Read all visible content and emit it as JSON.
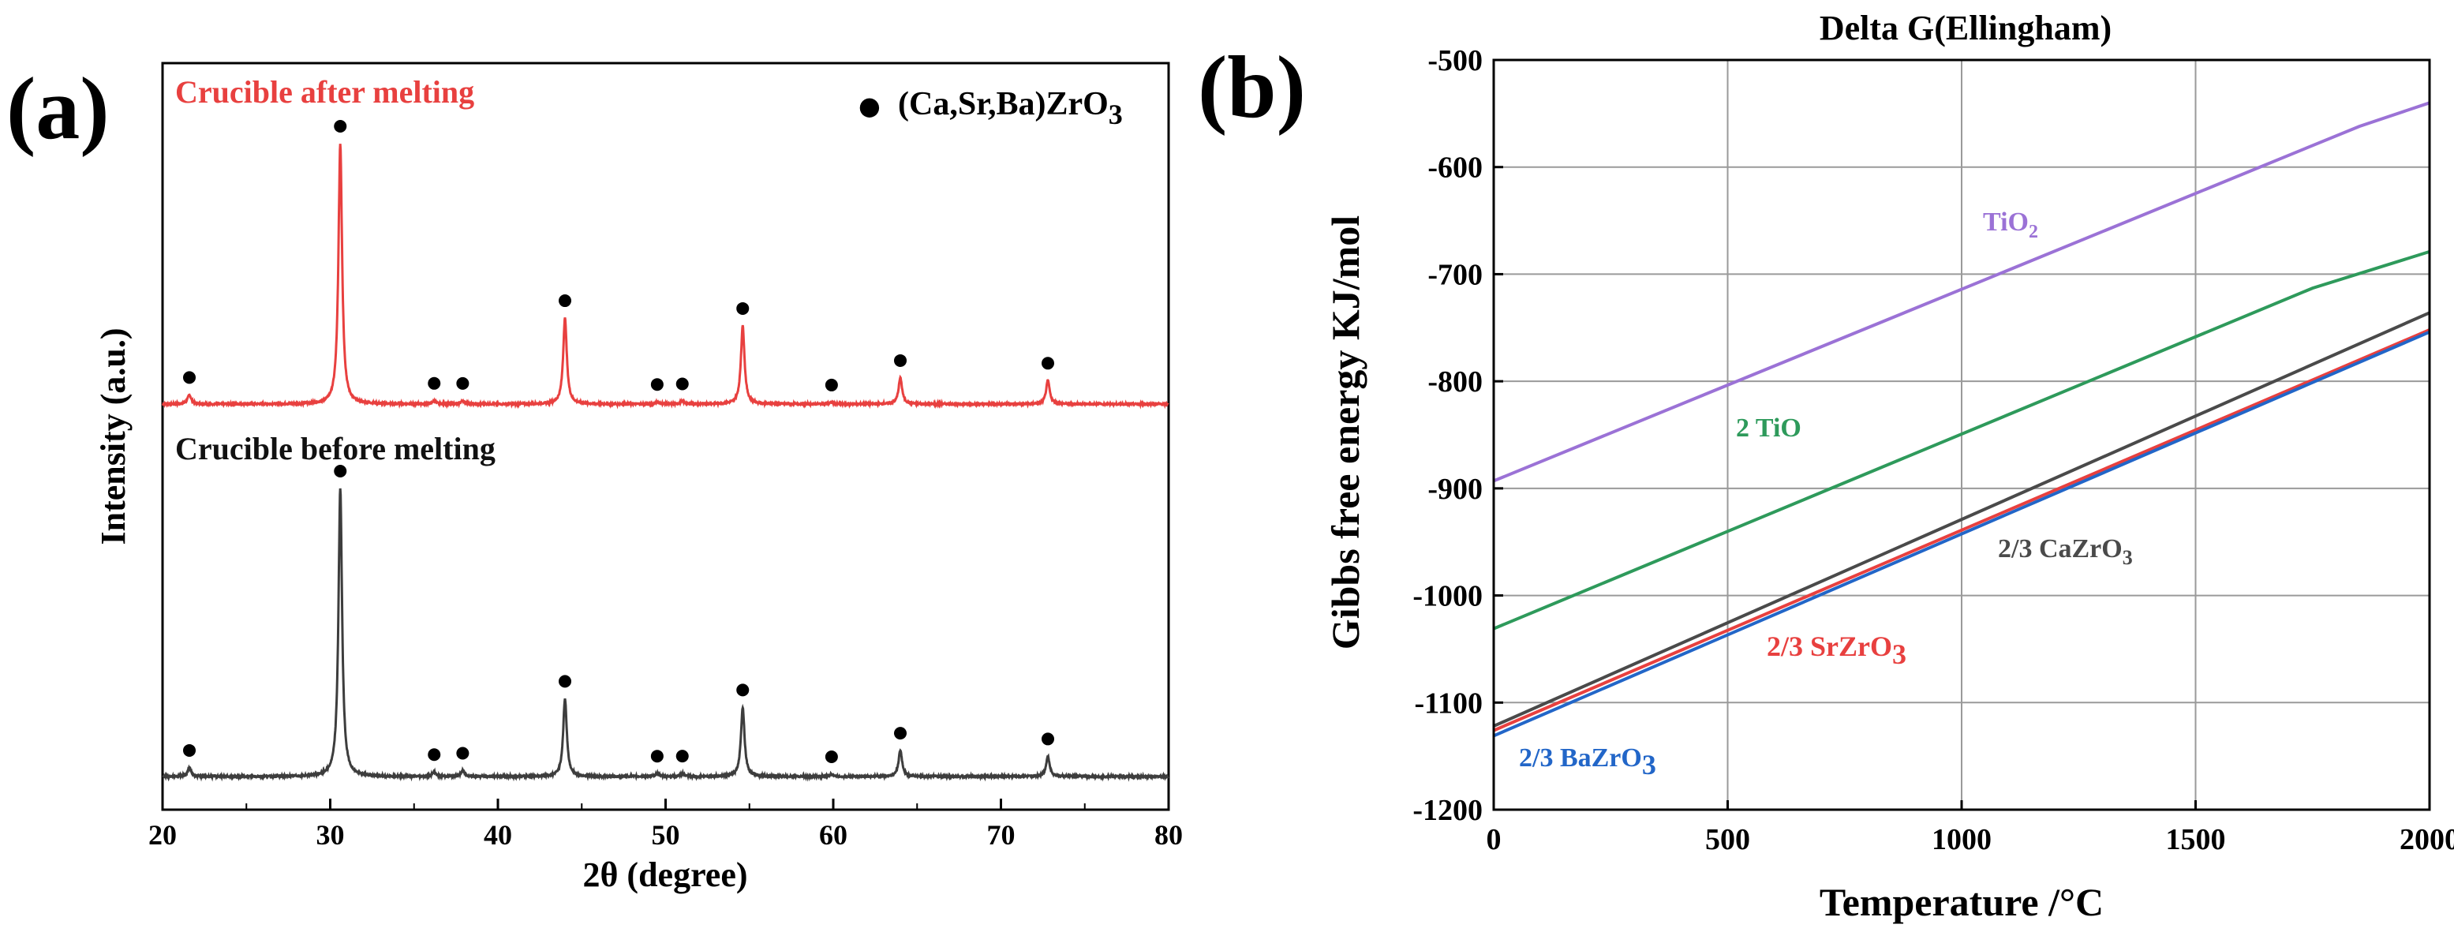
{
  "panels": {
    "a_label": "(a)",
    "b_label": "(b)"
  },
  "chart_data": [
    {
      "id": "a",
      "type": "line",
      "title": "",
      "xlabel": "2θ (degree)",
      "ylabel": "Intensity (a.u.)",
      "xlim": [
        20,
        80
      ],
      "xticks": [
        20,
        30,
        40,
        50,
        60,
        70,
        80
      ],
      "grid": false,
      "legend": {
        "marker": "●",
        "label_main": "(Ca,Sr,Ba)ZrO",
        "label_sub": "3",
        "position": "top-right"
      },
      "peak_positions": [
        21.6,
        30.6,
        36.2,
        37.9,
        44.0,
        49.5,
        51.0,
        54.6,
        59.9,
        64.0,
        72.8
      ],
      "series": [
        {
          "name": "Crucible after melting",
          "color": "#e8403f",
          "baseline": 0.0,
          "peaks": [
            {
              "x": 21.6,
              "h": 0.035
            },
            {
              "x": 30.6,
              "h": 1.0
            },
            {
              "x": 36.2,
              "h": 0.012
            },
            {
              "x": 37.9,
              "h": 0.012
            },
            {
              "x": 44.0,
              "h": 0.33
            },
            {
              "x": 49.5,
              "h": 0.008
            },
            {
              "x": 51.0,
              "h": 0.01
            },
            {
              "x": 54.6,
              "h": 0.3
            },
            {
              "x": 59.9,
              "h": 0.006
            },
            {
              "x": 64.0,
              "h": 0.1
            },
            {
              "x": 72.8,
              "h": 0.09
            }
          ]
        },
        {
          "name": "Crucible before melting",
          "color": "#3d3d3d",
          "baseline": 0.0,
          "peaks": [
            {
              "x": 21.6,
              "h": 0.03
            },
            {
              "x": 30.6,
              "h": 1.0
            },
            {
              "x": 36.2,
              "h": 0.015
            },
            {
              "x": 37.9,
              "h": 0.02
            },
            {
              "x": 44.0,
              "h": 0.27
            },
            {
              "x": 49.5,
              "h": 0.01
            },
            {
              "x": 51.0,
              "h": 0.01
            },
            {
              "x": 54.6,
              "h": 0.24
            },
            {
              "x": 59.9,
              "h": 0.008
            },
            {
              "x": 64.0,
              "h": 0.09
            },
            {
              "x": 72.8,
              "h": 0.07
            }
          ]
        }
      ]
    },
    {
      "id": "b",
      "type": "line",
      "title": "Delta G(Ellingham)",
      "xlabel": "Temperature /°C",
      "ylabel": "Gibbs free energy KJ/mol",
      "xlim": [
        0,
        2000
      ],
      "ylim": [
        -1200,
        -500
      ],
      "xticks": [
        0,
        500,
        1000,
        1500,
        2000
      ],
      "yticks": [
        -500,
        -600,
        -700,
        -800,
        -900,
        -1000,
        -1100,
        -1200
      ],
      "grid": true,
      "series": [
        {
          "name": "TiO",
          "sub": "2",
          "color": "#9b72d6",
          "x": [
            0,
            1850,
            2000
          ],
          "y": [
            -893,
            -562,
            -540
          ]
        },
        {
          "name": "2 TiO",
          "sub": "",
          "color": "#2e9a5b",
          "x": [
            0,
            1750,
            2000
          ],
          "y": [
            -1031,
            -713,
            -679
          ]
        },
        {
          "name": "2/3 CaZrO",
          "sub": "3",
          "color": "#4a4a4a",
          "x": [
            0,
            2000
          ],
          "y": [
            -1122,
            -736
          ]
        },
        {
          "name": "2/3 SrZrO",
          "sub": "3",
          "color": "#e8403f",
          "x": [
            0,
            2000
          ],
          "y": [
            -1126,
            -752
          ]
        },
        {
          "name": "2/3 BaZrO",
          "sub": "3",
          "color": "#2266c8",
          "x": [
            0,
            2000
          ],
          "y": [
            -1131,
            -754
          ]
        }
      ]
    }
  ]
}
